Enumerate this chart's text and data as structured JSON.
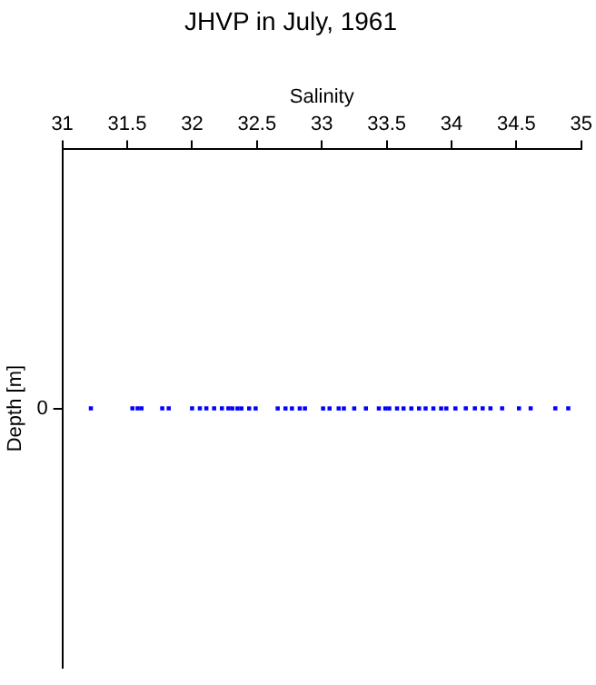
{
  "chart_data": {
    "type": "scatter",
    "title": "JHVP in July, 1961",
    "xlabel": "Salinity",
    "ylabel": "Depth [m]",
    "orientation": "horizontal",
    "categories": [
      "0"
    ],
    "xlim": [
      31,
      35
    ],
    "xticks": [
      31,
      31.5,
      32,
      32.5,
      33,
      33.5,
      34,
      34.5,
      35
    ],
    "grid": false,
    "legend": false,
    "marker": "square",
    "series": [
      {
        "color": "#0000ff",
        "x": [
          "0",
          "0",
          "0",
          "0",
          "0",
          "0",
          "0",
          "0",
          "0",
          "0",
          "0",
          "0",
          "0",
          "0",
          "0",
          "0",
          "0",
          "0",
          "0",
          "0",
          "0",
          "0",
          "0",
          "0",
          "0",
          "0",
          "0",
          "0",
          "0",
          "0",
          "0",
          "0",
          "0",
          "0",
          "0",
          "0",
          "0",
          "0",
          "0",
          "0",
          "0",
          "0",
          "0",
          "0",
          "0",
          "0",
          "0",
          "0",
          "0"
        ],
        "values": [
          31.22,
          31.54,
          31.58,
          31.61,
          31.77,
          31.82,
          32.0,
          32.06,
          32.11,
          32.17,
          32.23,
          32.28,
          32.31,
          32.35,
          32.38,
          32.44,
          32.49,
          32.66,
          32.72,
          32.77,
          32.83,
          32.87,
          33.01,
          33.06,
          33.13,
          33.17,
          33.25,
          33.34,
          33.44,
          33.49,
          33.52,
          33.58,
          33.63,
          33.69,
          33.75,
          33.8,
          33.86,
          33.92,
          33.96,
          34.03,
          34.11,
          34.18,
          34.24,
          34.3,
          34.39,
          34.52,
          34.61,
          34.8,
          34.9
        ]
      }
    ]
  }
}
